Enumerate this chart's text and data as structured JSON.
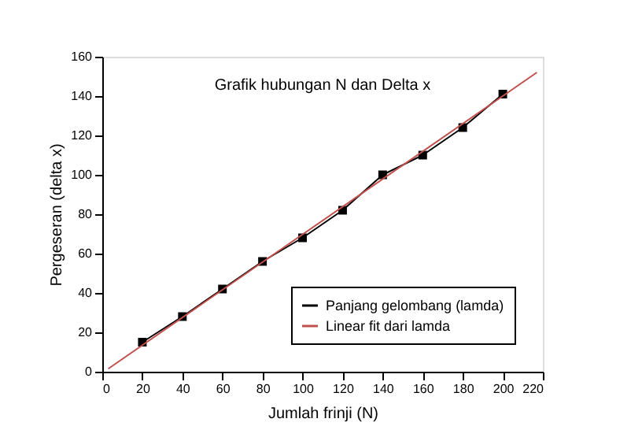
{
  "chart_data": {
    "type": "line",
    "title": "Grafik hubungan N dan Delta x",
    "xlabel": "Jumlah frinji (N)",
    "ylabel": "Pergeseran (delta x)",
    "series": [
      {
        "name": "Panjang gelombang (lamda)",
        "color": "#000000",
        "marker": "square",
        "x": [
          20,
          40,
          60,
          80,
          100,
          120,
          140,
          160,
          180,
          200
        ],
        "values": [
          15,
          28,
          42,
          56,
          68,
          82,
          100,
          110,
          124,
          141
        ]
      },
      {
        "name": "Linear fit dari lamda",
        "color": "#c0504d",
        "marker": "none",
        "x": [
          3,
          217
        ],
        "values": [
          1.5,
          152
        ]
      }
    ],
    "xlim": [
      0,
      220
    ],
    "xticks": [
      0,
      20,
      40,
      60,
      80,
      100,
      120,
      140,
      160,
      180,
      200,
      220
    ],
    "ylim": [
      0,
      160
    ],
    "yticks": [
      0,
      20,
      40,
      60,
      80,
      100,
      120,
      140,
      160
    ],
    "grid": false,
    "legend": "bottom right",
    "line_style": "solid"
  }
}
